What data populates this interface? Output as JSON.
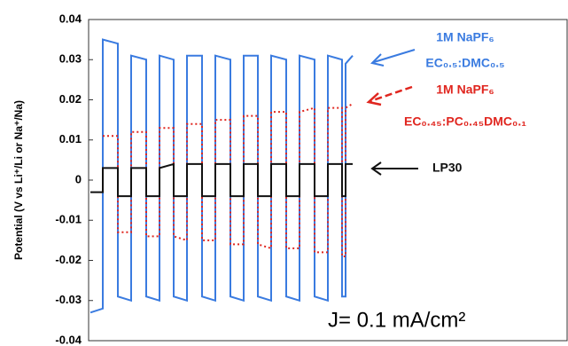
{
  "chart_data": {
    "type": "line",
    "y_label": "Potential (V vs Li⁺/Li or Na⁺/Na)",
    "annotation": "J= 0.1 mA/cm²",
    "x": [
      0,
      14,
      14,
      31,
      31,
      46,
      46,
      63,
      63,
      78,
      78,
      94,
      94,
      109,
      109,
      126,
      126,
      141,
      141,
      158,
      158,
      173,
      173,
      189,
      189,
      204,
      204,
      221,
      221,
      236,
      236,
      253,
      253,
      268,
      268,
      284,
      284,
      288,
      288,
      296
    ],
    "xlim": [
      0,
      528
    ],
    "ylim": [
      -0.04,
      0.04
    ],
    "yticks": [
      0.04,
      0.03,
      0.02,
      0.01,
      0,
      -0.01,
      -0.02,
      -0.03,
      -0.04
    ],
    "series": [
      {
        "name": [
          "1M NaPF₆",
          "EC₀.₅:DMC₀.₅"
        ],
        "color": "#3a7be0",
        "style": "solid",
        "values": [
          -0.033,
          -0.032,
          0.035,
          0.034,
          -0.029,
          -0.03,
          0.031,
          0.03,
          -0.029,
          -0.03,
          0.031,
          0.03,
          -0.029,
          -0.03,
          0.031,
          0.031,
          -0.029,
          -0.03,
          0.031,
          0.03,
          -0.029,
          -0.03,
          0.031,
          0.031,
          -0.029,
          -0.03,
          0.031,
          0.03,
          -0.029,
          -0.03,
          0.031,
          0.03,
          -0.029,
          -0.03,
          0.031,
          0.03,
          -0.029,
          -0.029,
          0.029,
          0.031
        ]
      },
      {
        "name": [
          "1M NaPF₆",
          "EC₀.₄₅:PC₀.₄₅DMC₀.₁"
        ],
        "color": "#e0261f",
        "style": "dotted",
        "values": [
          null,
          null,
          0.011,
          0.011,
          -0.013,
          -0.013,
          0.012,
          0.012,
          -0.014,
          -0.014,
          0.013,
          0.013,
          -0.014,
          -0.015,
          0.014,
          0.014,
          -0.015,
          -0.015,
          0.015,
          0.015,
          -0.016,
          -0.016,
          0.016,
          0.016,
          -0.016,
          -0.017,
          0.017,
          0.017,
          -0.017,
          -0.017,
          0.017,
          0.018,
          -0.018,
          -0.018,
          0.018,
          0.018,
          -0.019,
          -0.019,
          0.018,
          0.019
        ]
      },
      {
        "name": [
          "LP30"
        ],
        "color": "#111111",
        "style": "solid",
        "values": [
          -0.003,
          -0.003,
          0.003,
          0.003,
          -0.004,
          -0.004,
          0.003,
          0.003,
          -0.004,
          -0.004,
          0.003,
          0.004,
          -0.004,
          -0.004,
          0.004,
          0.004,
          -0.004,
          -0.004,
          0.004,
          0.004,
          -0.004,
          -0.004,
          0.004,
          0.004,
          -0.004,
          -0.004,
          0.004,
          0.004,
          -0.004,
          -0.004,
          0.004,
          0.004,
          -0.004,
          -0.004,
          0.004,
          0.004,
          -0.004,
          -0.004,
          0.004,
          0.004
        ]
      }
    ]
  }
}
